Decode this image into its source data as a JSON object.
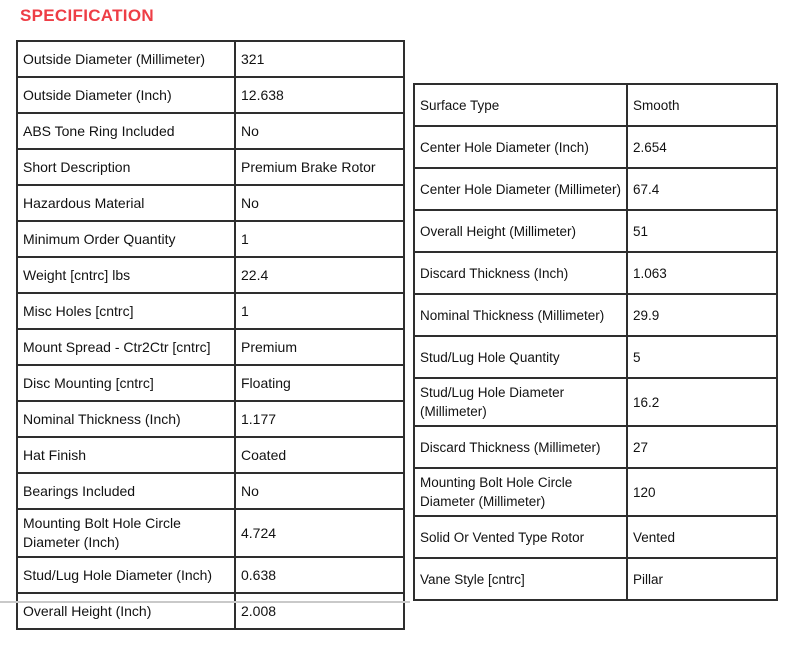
{
  "page": {
    "title": "SPECIFICATION",
    "accent_color": "#ee3e46"
  },
  "left_table": {
    "rows": [
      {
        "label": "Outside Diameter (Millimeter)",
        "value": "321"
      },
      {
        "label": "Outside Diameter (Inch)",
        "value": "12.638"
      },
      {
        "label": "ABS Tone Ring Included",
        "value": "No"
      },
      {
        "label": "Short Description",
        "value": "Premium Brake Rotor"
      },
      {
        "label": "Hazardous Material",
        "value": "No"
      },
      {
        "label": "Minimum Order Quantity",
        "value": "1"
      },
      {
        "label": "Weight [cntrc] lbs",
        "value": "22.4"
      },
      {
        "label": "Misc Holes [cntrc]",
        "value": "1"
      },
      {
        "label": "Mount Spread - Ctr2Ctr [cntrc]",
        "value": "Premium"
      },
      {
        "label": "Disc Mounting [cntrc]",
        "value": "Floating"
      },
      {
        "label": "Nominal Thickness (Inch)",
        "value": "1.177"
      },
      {
        "label": "Hat Finish",
        "value": "Coated"
      },
      {
        "label": "Bearings Included",
        "value": "No"
      },
      {
        "label": "Mounting Bolt Hole Circle Diameter (Inch)",
        "value": "4.724"
      },
      {
        "label": "Stud/Lug Hole Diameter (Inch)",
        "value": "0.638"
      },
      {
        "label": "Overall Height (Inch)",
        "value": "2.008"
      }
    ]
  },
  "right_table": {
    "rows": [
      {
        "label": "Surface Type",
        "value": "Smooth"
      },
      {
        "label": "Center Hole Diameter (Inch)",
        "value": "2.654"
      },
      {
        "label": "Center Hole Diameter (Millimeter)",
        "value": "67.4"
      },
      {
        "label": "Overall Height (Millimeter)",
        "value": "51"
      },
      {
        "label": "Discard Thickness (Inch)",
        "value": "1.063"
      },
      {
        "label": "Nominal Thickness (Millimeter)",
        "value": "29.9"
      },
      {
        "label": "Stud/Lug Hole Quantity",
        "value": "5"
      },
      {
        "label": "Stud/Lug Hole Diameter (Millimeter)",
        "value": "16.2"
      },
      {
        "label": "Discard Thickness (Millimeter)",
        "value": "27"
      },
      {
        "label": "Mounting Bolt Hole Circle Diameter (Millimeter)",
        "value": "120"
      },
      {
        "label": "Solid Or Vented Type Rotor",
        "value": "Vented"
      },
      {
        "label": "Vane Style [cntrc]",
        "value": "Pillar"
      }
    ]
  }
}
